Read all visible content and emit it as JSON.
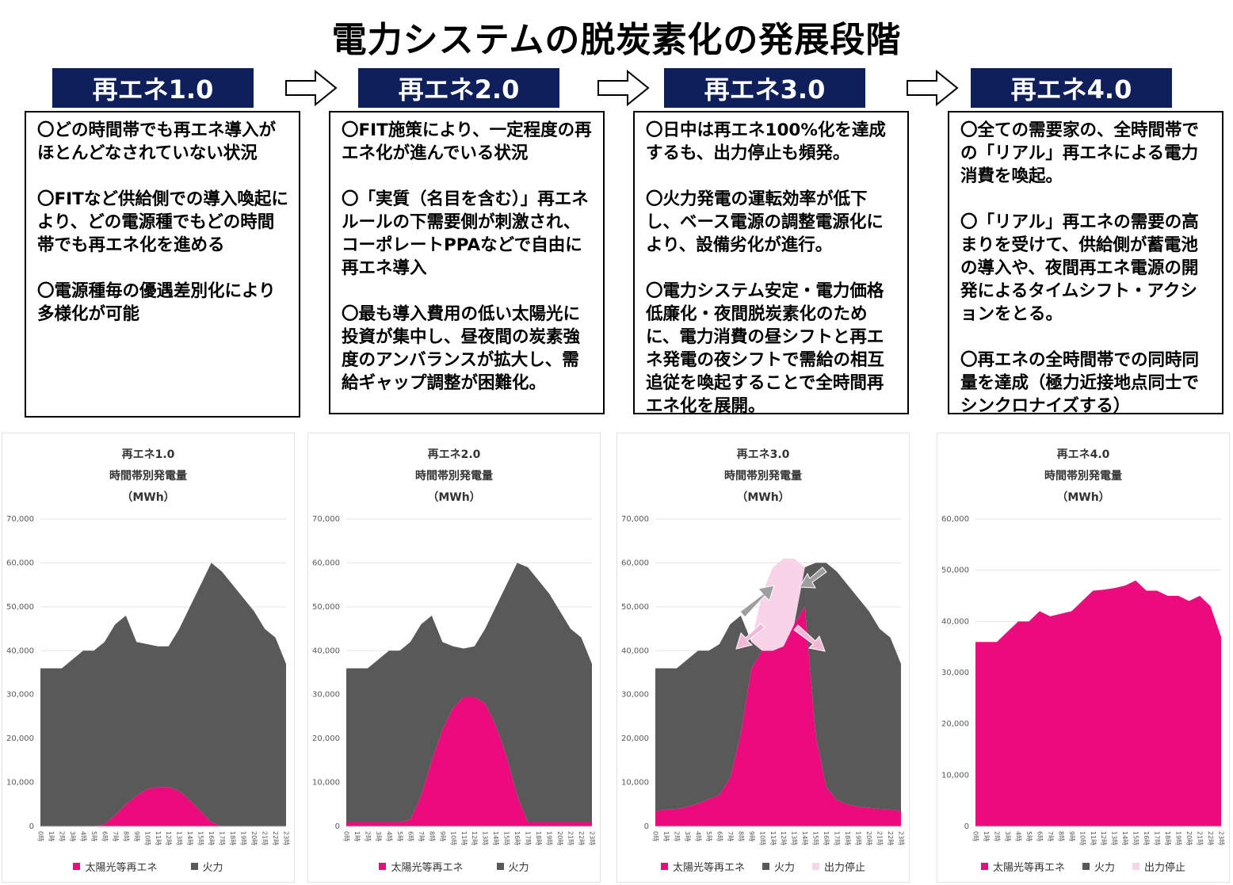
{
  "title": "電力システムの脱炭素化の発展段階",
  "colors": {
    "renewable": "#ec0b7c",
    "thermal": "#595959",
    "curtail": "#f9d3e7",
    "header_bg": "#0f1f5c"
  },
  "stages": [
    {
      "header": "再エネ1.0",
      "paragraphs": [
        "〇どの時間帯でも再エネ導入がほとんどなされていない状況",
        "〇FITなど供給側での導入喚起により、どの電源種でもどの時間帯でも再エネ化を進める",
        "〇電源種毎の優遇差別化により多様化が可能"
      ]
    },
    {
      "header": "再エネ2.0",
      "paragraphs": [
        "〇FIT施策により、一定程度の再エネ化が進んでいる状況",
        "〇「実質（名目を含む）」再エネルールの下需要側が刺激され、コーポレートPPAなどで自由に再エネ導入",
        "〇最も導入費用の低い太陽光に投資が集中し、昼夜間の炭素強度のアンバランスが拡大し、需給ギャップ調整が困難化。"
      ]
    },
    {
      "header": "再エネ3.0",
      "paragraphs": [
        "〇日中は再エネ100%化を達成するも、出力停止も頻発。",
        "〇火力発電の運転効率が低下し、ベース電源の調整電源化により、設備劣化が進行。",
        "〇電力システム安定・電力価格低廉化・夜間脱炭素化のために、電力消費の昼シフトと再エネ発電の夜シフトで需給の相互追従を喚起することで全時間再エネ化を展開。"
      ]
    },
    {
      "header": "再エネ4.0",
      "paragraphs": [
        "〇全ての需要家の、全時間帯での「リアル」再エネによる電力消費を喚起。",
        "〇「リアル」再エネの需要の高まりを受けて、供給側が蓄電池の導入や、夜間再エネ電源の開発によるタイムシフト・アクションをとる。",
        "〇再エネの全時間帯での同時同量を達成（極力近接地点同士でシンクロナイズする）"
      ]
    }
  ],
  "chart_data": [
    {
      "type": "area",
      "title": "再エネ1.0",
      "subtitle": "時間帯別発電量",
      "unit": "（MWh）",
      "categories": [
        "0時",
        "1時",
        "2時",
        "3時",
        "4時",
        "5時",
        "6時",
        "7時",
        "8時",
        "9時",
        "10時",
        "11時",
        "12時",
        "13時",
        "14時",
        "15時",
        "16時",
        "17時",
        "18時",
        "19時",
        "20時",
        "21時",
        "22時",
        "23時"
      ],
      "ylim": [
        0,
        70000
      ],
      "yticks": [
        "0",
        "10,000",
        "20,000",
        "30,000",
        "40,000",
        "50,000",
        "60,000",
        "70,000"
      ],
      "series": [
        {
          "name": "太陽光等再エネ",
          "values": [
            0,
            0,
            0,
            0,
            0,
            0,
            500,
            2500,
            5000,
            7000,
            8500,
            9000,
            9000,
            8000,
            6000,
            3500,
            1000,
            0,
            0,
            0,
            0,
            0,
            0,
            0
          ]
        },
        {
          "name": "火力",
          "values": [
            36000,
            36000,
            36000,
            38000,
            40000,
            40000,
            41500,
            43500,
            43000,
            35000,
            33000,
            32000,
            32000,
            37000,
            44000,
            51500,
            59000,
            58000,
            55000,
            52000,
            49000,
            45000,
            43000,
            37000
          ]
        }
      ]
    },
    {
      "type": "area",
      "title": "再エネ2.0",
      "subtitle": "時間帯別発電量",
      "unit": "（MWh）",
      "categories": [
        "0時",
        "1時",
        "2時",
        "3時",
        "4時",
        "5時",
        "6時",
        "7時",
        "8時",
        "9時",
        "10時",
        "11時",
        "12時",
        "13時",
        "14時",
        "15時",
        "16時",
        "17時",
        "18時",
        "19時",
        "20時",
        "21時",
        "22時",
        "23時"
      ],
      "ylim": [
        0,
        70000
      ],
      "yticks": [
        "0",
        "10,000",
        "20,000",
        "30,000",
        "40,000",
        "50,000",
        "60,000",
        "70,000"
      ],
      "series": [
        {
          "name": "太陽光等再エネ",
          "values": [
            1000,
            1000,
            1000,
            1000,
            1000,
            1000,
            1500,
            7000,
            15000,
            22000,
            27000,
            29500,
            29500,
            28000,
            23000,
            16000,
            7000,
            1000,
            1000,
            1000,
            1000,
            1000,
            1000,
            1000
          ]
        },
        {
          "name": "火力",
          "values": [
            35000,
            35000,
            35000,
            37000,
            39000,
            39000,
            40500,
            39000,
            33000,
            20000,
            14000,
            11000,
            11500,
            17000,
            27000,
            39000,
            53000,
            58000,
            55000,
            52000,
            48000,
            44000,
            42000,
            36000
          ]
        }
      ]
    },
    {
      "type": "area",
      "title": "再エネ3.0",
      "subtitle": "時間帯別発電量",
      "unit": "（MWh）",
      "categories": [
        "0時",
        "1時",
        "2時",
        "3時",
        "4時",
        "5時",
        "6時",
        "7時",
        "8時",
        "9時",
        "10時",
        "11時",
        "12時",
        "13時",
        "14時",
        "15時",
        "16時",
        "17時",
        "18時",
        "19時",
        "20時",
        "21時",
        "22時",
        "23時"
      ],
      "ylim": [
        0,
        70000
      ],
      "yticks": [
        "0",
        "10,000",
        "20,000",
        "30,000",
        "40,000",
        "50,000",
        "60,000",
        "70,000"
      ],
      "series": [
        {
          "name": "太陽光等再エネ",
          "values": [
            3500,
            3800,
            4000,
            4500,
            5200,
            6200,
            7200,
            11000,
            21000,
            36000,
            40000,
            40000,
            41000,
            46000,
            50000,
            21000,
            9000,
            6000,
            5000,
            4500,
            4200,
            4000,
            3800,
            3500
          ]
        },
        {
          "name": "火力",
          "values": [
            32500,
            32200,
            32000,
            33500,
            34800,
            33800,
            34300,
            35000,
            27000,
            6000,
            0,
            0,
            0,
            0,
            9000,
            39000,
            51000,
            52000,
            50000,
            47500,
            44800,
            41000,
            39200,
            33500
          ]
        },
        {
          "name": "出力停止",
          "values": [
            0,
            0,
            0,
            0,
            0,
            0,
            0,
            0,
            0,
            0,
            13000,
            19000,
            20000,
            15000,
            0,
            0,
            0,
            0,
            0,
            0,
            0,
            0,
            0,
            0
          ]
        }
      ]
    },
    {
      "type": "area",
      "title": "再エネ4.0",
      "subtitle": "時間帯別発電量",
      "unit": "（MWh）",
      "categories": [
        "0時",
        "1時",
        "2時",
        "3時",
        "4時",
        "5時",
        "6時",
        "7時",
        "8時",
        "9時",
        "10時",
        "11時",
        "12時",
        "13時",
        "14時",
        "15時",
        "16時",
        "17時",
        "18時",
        "19時",
        "20時",
        "21時",
        "22時",
        "23時"
      ],
      "ylim": [
        0,
        60000
      ],
      "yticks": [
        "0",
        "10,000",
        "20,000",
        "30,000",
        "40,000",
        "50,000",
        "60,000"
      ],
      "series": [
        {
          "name": "太陽光等再エネ",
          "values": [
            36000,
            36000,
            36000,
            38000,
            40000,
            40000,
            42000,
            41000,
            41500,
            42000,
            44000,
            46000,
            46200,
            46500,
            47000,
            48000,
            46000,
            46000,
            45000,
            45000,
            44000,
            45000,
            43000,
            37000
          ]
        },
        {
          "name": "火力",
          "values": [
            0,
            0,
            0,
            0,
            0,
            0,
            0,
            0,
            0,
            0,
            0,
            0,
            0,
            0,
            0,
            0,
            0,
            0,
            0,
            0,
            0,
            0,
            0,
            0
          ]
        },
        {
          "name": "出力停止",
          "values": [
            0,
            0,
            0,
            0,
            0,
            0,
            0,
            0,
            0,
            0,
            0,
            0,
            0,
            0,
            0,
            0,
            0,
            0,
            0,
            0,
            0,
            0,
            0,
            0
          ]
        }
      ]
    }
  ]
}
